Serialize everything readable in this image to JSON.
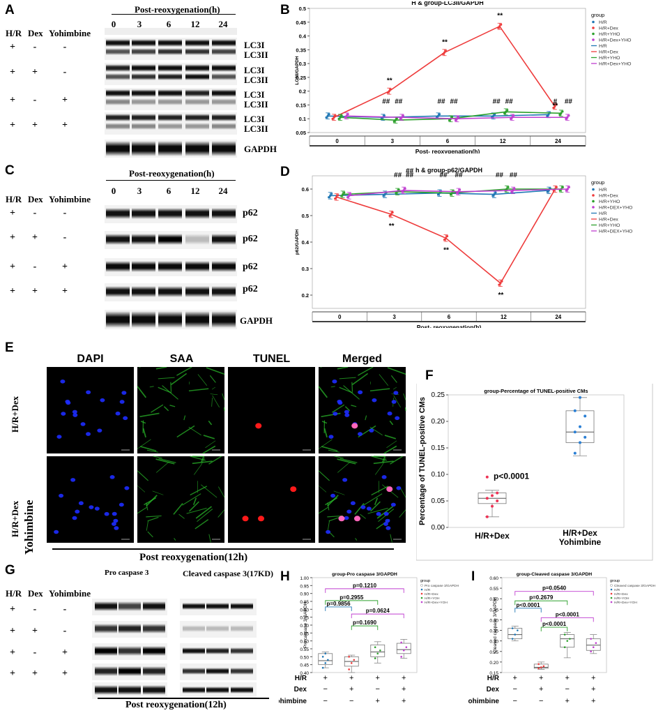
{
  "panels": {
    "A": "A",
    "B": "B",
    "C": "C",
    "D": "D",
    "E": "E",
    "F": "F",
    "G": "G",
    "H": "H",
    "I": "I"
  },
  "blotA": {
    "post_label": "Post-reoxygenation(h)",
    "timepoints": [
      "0",
      "3",
      "6",
      "12",
      "24"
    ],
    "col_headers": [
      "H/R",
      "Dex",
      "Yohimbine"
    ],
    "rows": [
      [
        "+",
        "-",
        "-"
      ],
      [
        "+",
        "+",
        "-"
      ],
      [
        "+",
        "-",
        "+"
      ],
      [
        "+",
        "+",
        "+"
      ]
    ],
    "band_labels": [
      "LC3I",
      "LC3II"
    ],
    "gapdh": "GAPDH"
  },
  "blotC": {
    "post_label": "Post-reoxygenation(h)",
    "timepoints": [
      "0",
      "3",
      "6",
      "12",
      "24"
    ],
    "col_headers": [
      "H/R",
      "Dex",
      "Yohimbine"
    ],
    "rows": [
      [
        "+",
        "-",
        "-"
      ],
      [
        "+",
        "+",
        "-"
      ],
      [
        "+",
        "-",
        "+"
      ],
      [
        "+",
        "+",
        "+"
      ]
    ],
    "band_label": "p62",
    "gapdh": "GAPDH"
  },
  "blotG": {
    "col_headers": [
      "H/R",
      "Dex",
      "Yohimbine"
    ],
    "rows": [
      [
        "+",
        "-",
        "-"
      ],
      [
        "+",
        "+",
        "-"
      ],
      [
        "+",
        "-",
        "+"
      ],
      [
        "+",
        "+",
        "+"
      ]
    ],
    "pro_label": "Pro caspase 3",
    "cleaved_label": "Cleaved caspase 3(17KD)",
    "post_label": "Post reoxygenation(12h)"
  },
  "colors": {
    "HR": "#1f77b4",
    "Dex": "#ee3b3b",
    "YHO": "#2ca02c",
    "DexYHO": "#c03fd0"
  },
  "chart_data": [
    {
      "id": "B",
      "type": "line",
      "title": "H & group-LC3II/GAPDH",
      "ylabel": "LC3II/GAPDH",
      "xlabel": "Post- reoxygenation(h)",
      "categories": [
        "0",
        "3",
        "6",
        "12",
        "24"
      ],
      "ylim": [
        0.05,
        0.5
      ],
      "yticks": [
        0.05,
        0.1,
        0.15,
        0.2,
        0.25,
        0.3,
        0.35,
        0.4,
        0.45,
        0.5
      ],
      "legend_title": "group",
      "legend": [
        "H/R",
        "H/R+Dex",
        "H/R+YHO",
        "H/R+Dex+YHO",
        "H/R",
        "H/R+Dex",
        "H/R+YHO",
        "H/R+Dex+YHO"
      ],
      "series": [
        {
          "name": "H/R",
          "values": [
            0.11,
            0.105,
            0.11,
            0.11,
            0.115
          ]
        },
        {
          "name": "H/R+Dex",
          "values": [
            0.105,
            0.2,
            0.34,
            0.435,
            0.145
          ]
        },
        {
          "name": "H/R+YHO",
          "values": [
            0.105,
            0.095,
            0.1,
            0.125,
            0.12
          ]
        },
        {
          "name": "H/R+Dex+YHO",
          "values": [
            0.11,
            0.105,
            0.1,
            0.105,
            0.105
          ]
        }
      ],
      "annotations": [
        {
          "x": "3",
          "series": "H/R+Dex",
          "text": "**"
        },
        {
          "x": "6",
          "series": "H/R+Dex",
          "text": "**"
        },
        {
          "x": "12",
          "series": "H/R+Dex",
          "text": "**"
        },
        {
          "x": "24",
          "series": "H/R+Dex",
          "text": "**"
        },
        {
          "x": "3",
          "text": "##"
        },
        {
          "x": "3",
          "text": "##"
        },
        {
          "x": "6",
          "text": "##"
        },
        {
          "x": "6",
          "text": "##"
        },
        {
          "x": "12",
          "text": "##"
        },
        {
          "x": "12",
          "text": "##"
        },
        {
          "x": "24",
          "text": "#"
        },
        {
          "x": "24",
          "text": "##"
        }
      ]
    },
    {
      "id": "D",
      "type": "line",
      "title": "h & group-p62/GAPDH",
      "ylabel": "p62/GAPDH",
      "xlabel": "Post- reoxygenation(h)",
      "categories": [
        "0",
        "3",
        "6",
        "12",
        "24"
      ],
      "ylim": [
        0.15,
        0.65
      ],
      "yticks": [
        0.2,
        0.3,
        0.4,
        0.5,
        0.6
      ],
      "legend_title": "group",
      "legend": [
        "H/R",
        "H/R+Dex",
        "H/R+YHO",
        "H/R+DEX+YHO",
        "H/R",
        "H/R+Dex",
        "H/R+YHO",
        "H/R+DEX+YHO"
      ],
      "series": [
        {
          "name": "H/R",
          "values": [
            0.575,
            0.58,
            0.585,
            0.58,
            0.595
          ]
        },
        {
          "name": "H/R+Dex",
          "values": [
            0.57,
            0.505,
            0.415,
            0.245,
            0.6
          ]
        },
        {
          "name": "H/R+YHO",
          "values": [
            0.58,
            0.59,
            0.585,
            0.6,
            0.6
          ]
        },
        {
          "name": "H/R+DEX+YHO",
          "values": [
            0.575,
            0.595,
            0.59,
            0.595,
            0.6
          ]
        }
      ],
      "annotations": [
        {
          "x": "3",
          "series": "H/R+Dex",
          "text": "**"
        },
        {
          "x": "6",
          "series": "H/R+Dex",
          "text": "**"
        },
        {
          "x": "12",
          "series": "H/R+Dex",
          "text": "**"
        },
        {
          "x": "3",
          "text": "##"
        },
        {
          "x": "3",
          "text": "##"
        },
        {
          "x": "3",
          "text": "##"
        },
        {
          "x": "6",
          "text": "##"
        },
        {
          "x": "6",
          "text": "##"
        },
        {
          "x": "12",
          "text": "##"
        },
        {
          "x": "12",
          "text": "##"
        }
      ]
    },
    {
      "id": "F",
      "type": "box",
      "title": "group-Percentage of TUNEL-positive CMs",
      "ylabel": "Percentage of TUNEL-positive CMs",
      "categories": [
        "H/R+Dex",
        "H/R+Dex Yohimbine"
      ],
      "ylim": [
        0,
        0.25
      ],
      "yticks": [
        0.0,
        0.05,
        0.1,
        0.15,
        0.2,
        0.25
      ],
      "boxes": [
        {
          "min": 0.02,
          "q1": 0.045,
          "median": 0.055,
          "q3": 0.065,
          "max": 0.07,
          "points": [
            0.02,
            0.04,
            0.05,
            0.055,
            0.06,
            0.065,
            0.095
          ]
        },
        {
          "min": 0.135,
          "q1": 0.16,
          "median": 0.18,
          "q3": 0.22,
          "max": 0.245,
          "points": [
            0.14,
            0.16,
            0.17,
            0.18,
            0.19,
            0.21,
            0.22,
            0.245
          ]
        }
      ],
      "annotation": "p<0.0001"
    },
    {
      "id": "H",
      "type": "box",
      "title": "group-Pro caspase 3/GAPDH",
      "ylabel": "Pro caspase 3/GAPDH",
      "ylim": [
        0.4,
        1.0
      ],
      "yticks": [
        0.4,
        0.45,
        0.5,
        0.55,
        0.6,
        0.65,
        0.7,
        0.75,
        0.8,
        0.85,
        0.9,
        0.95,
        1.0
      ],
      "legend_title": "group",
      "legend": [
        "Pro caspase 3/GAPDH",
        "H/R",
        "H/R+Dex",
        "H/R+YOH",
        "H/R+Dex+YOH"
      ],
      "boxes": [
        {
          "min": 0.43,
          "q1": 0.45,
          "median": 0.475,
          "q3": 0.52,
          "max": 0.53,
          "points": [
            0.43,
            0.46,
            0.48,
            0.5,
            0.52
          ]
        },
        {
          "min": 0.4,
          "q1": 0.44,
          "median": 0.47,
          "q3": 0.5,
          "max": 0.51,
          "points": [
            0.42,
            0.46,
            0.48,
            0.5
          ]
        },
        {
          "min": 0.46,
          "q1": 0.5,
          "median": 0.53,
          "q3": 0.575,
          "max": 0.595,
          "points": [
            0.49,
            0.52,
            0.54,
            0.56
          ]
        },
        {
          "min": 0.49,
          "q1": 0.52,
          "median": 0.545,
          "q3": 0.585,
          "max": 0.61,
          "points": [
            0.5,
            0.54,
            0.56,
            0.59
          ]
        }
      ],
      "row_labels": [
        "H/R",
        "Dex",
        "Yohimbine"
      ],
      "signs": [
        [
          "+",
          "+",
          "+",
          "+"
        ],
        [
          "−",
          "+",
          "−",
          "+"
        ],
        [
          "−",
          "−",
          "+",
          "+"
        ]
      ],
      "pvalues": [
        "p=0.1210",
        "p=0.2955",
        "p=0.9856",
        "p=0.0624",
        "p=0.1690"
      ]
    },
    {
      "id": "I",
      "type": "box",
      "title": "group-Cleaved caspase 3/GAPDH",
      "ylabel": "Cleaved caspase 3/GAPDH",
      "ylim": [
        0.15,
        0.6
      ],
      "yticks": [
        0.15,
        0.2,
        0.25,
        0.3,
        0.35,
        0.4,
        0.45,
        0.5,
        0.55,
        0.6
      ],
      "legend_title": "group",
      "legend": [
        "Cleaved caspase 3/GAPDH",
        "H/R",
        "H/R+Dex",
        "H/R+YOH",
        "H/R+Dex+YOH"
      ],
      "boxes": [
        {
          "min": 0.3,
          "q1": 0.31,
          "median": 0.33,
          "q3": 0.36,
          "max": 0.37,
          "points": [
            0.31,
            0.33,
            0.35,
            0.36
          ]
        },
        {
          "min": 0.165,
          "q1": 0.17,
          "median": 0.175,
          "q3": 0.19,
          "max": 0.2,
          "points": [
            0.17,
            0.175,
            0.18,
            0.19
          ]
        },
        {
          "min": 0.22,
          "q1": 0.27,
          "median": 0.31,
          "q3": 0.33,
          "max": 0.34,
          "points": [
            0.27,
            0.3,
            0.31,
            0.33
          ]
        },
        {
          "min": 0.24,
          "q1": 0.255,
          "median": 0.28,
          "q3": 0.31,
          "max": 0.33,
          "points": [
            0.25,
            0.27,
            0.29,
            0.31
          ]
        }
      ],
      "row_labels": [
        "H/R",
        "Dex",
        "Yohimbine"
      ],
      "signs": [
        [
          "+",
          "+",
          "+",
          "+"
        ],
        [
          "−",
          "+",
          "−",
          "+"
        ],
        [
          "−",
          "−",
          "+",
          "+"
        ]
      ],
      "pvalues": [
        "p=0.0540",
        "p=0.2679",
        "p<0.0001",
        "p<0.0001",
        "p<0.0001"
      ]
    }
  ],
  "microscopy": {
    "channels": [
      "DAPI",
      "SAA",
      "TUNEL",
      "Merged"
    ],
    "channel_colors": [
      "#1a1aff",
      "#22cc22",
      "#ff2a2a",
      "#000000"
    ],
    "row_labels": [
      "H/R+Dex",
      "H/R+Dex"
    ],
    "row2_extra": "Yohimbine",
    "footer": "Post reoxygenation(12h)"
  }
}
